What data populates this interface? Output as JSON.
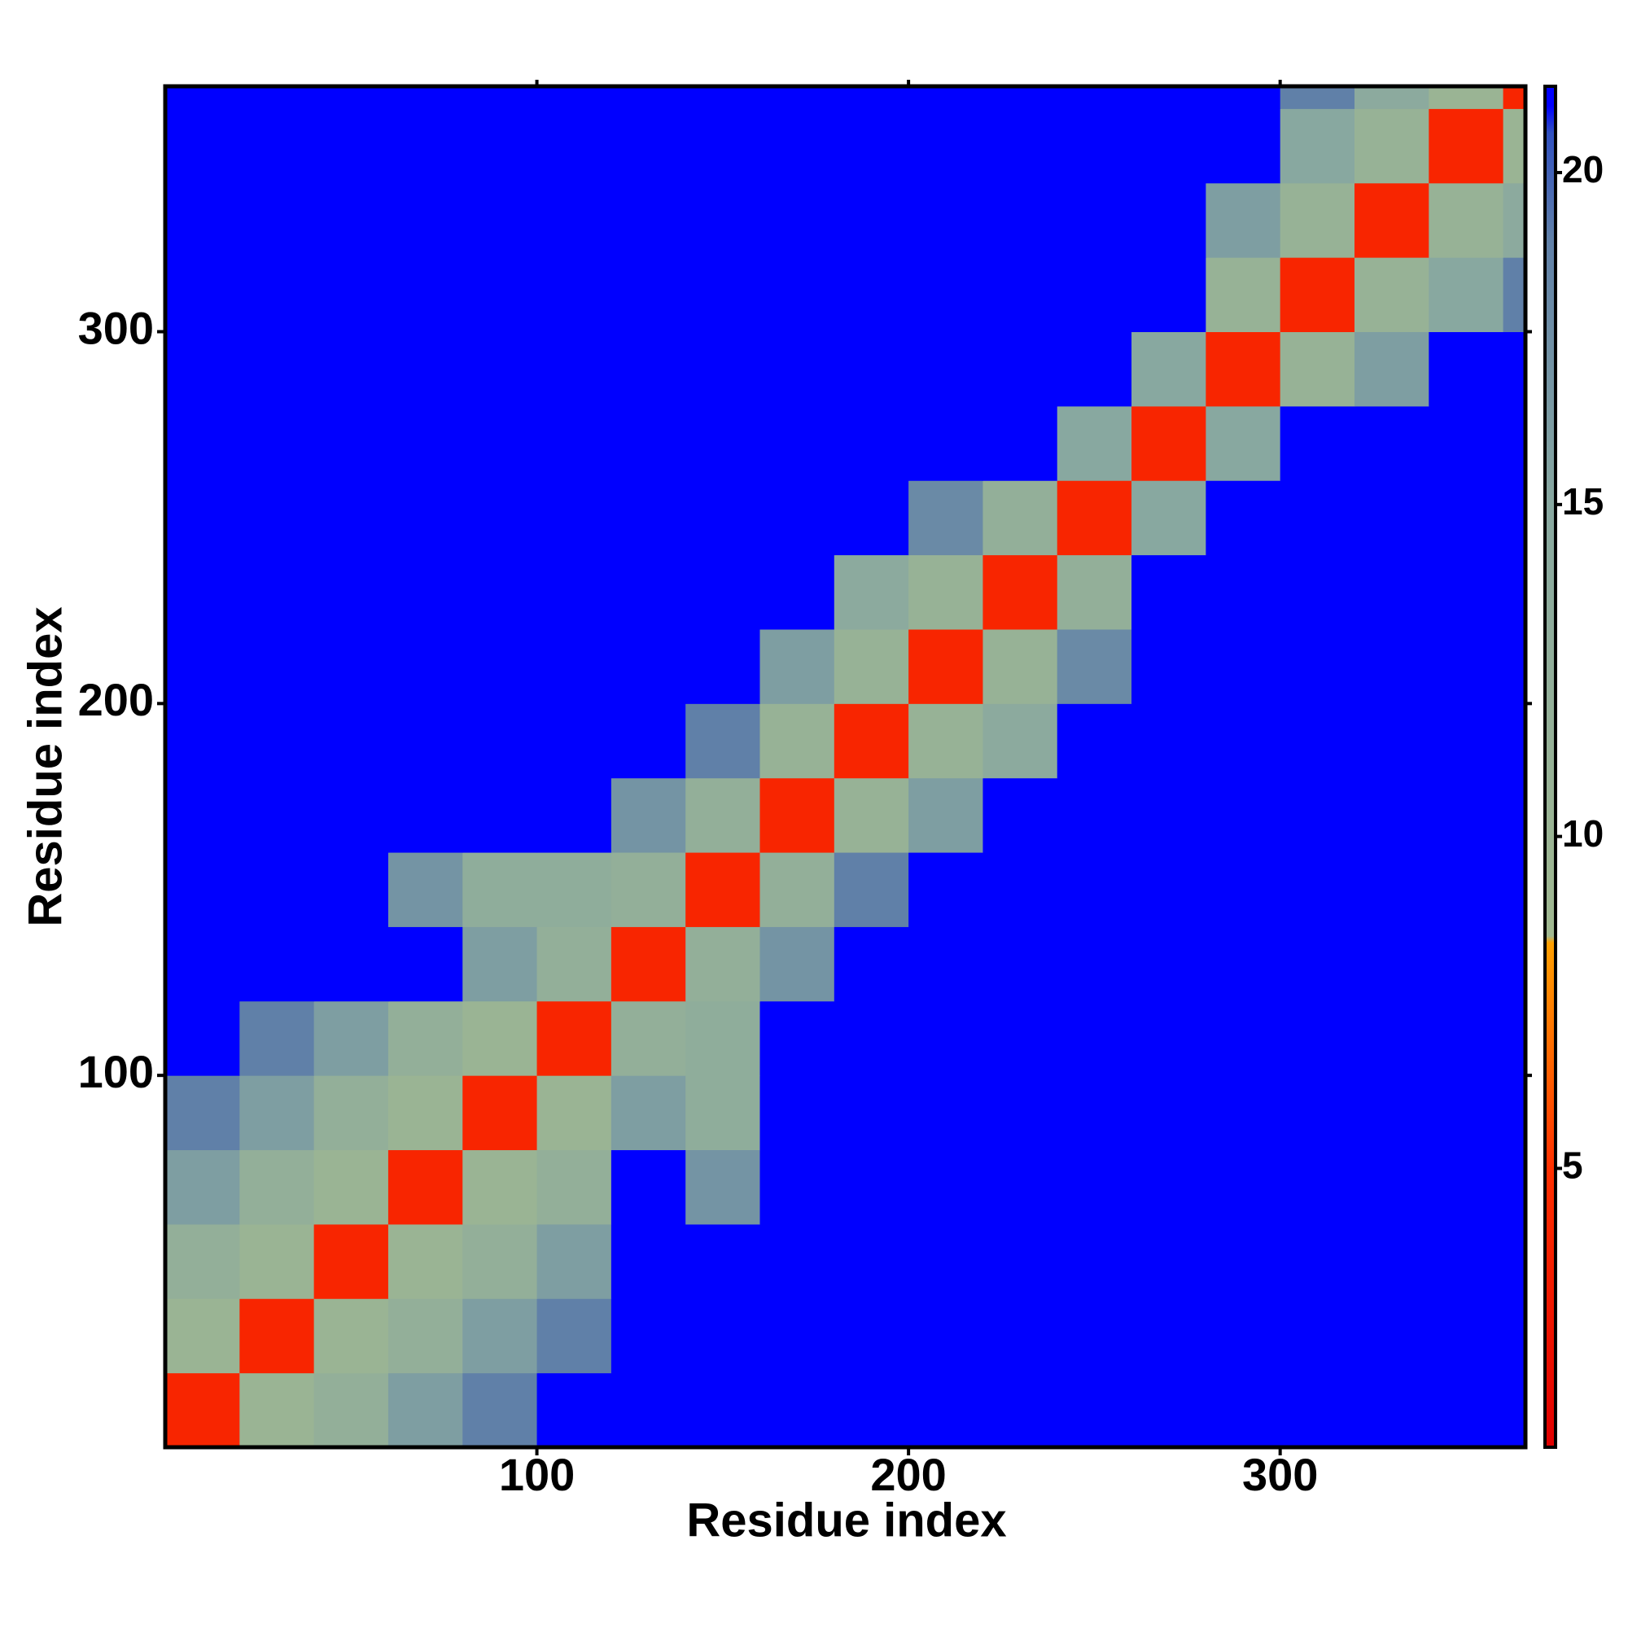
{
  "chart_data": {
    "type": "heatmap",
    "xlabel": "Residue index",
    "ylabel": "Residue index",
    "xlim": [
      0,
      366
    ],
    "ylim": [
      0,
      366
    ],
    "xticks": [
      100,
      200,
      300
    ],
    "yticks": [
      100,
      200,
      300
    ],
    "xbins": [
      0,
      20,
      40,
      60,
      80,
      100,
      120,
      140,
      160,
      180,
      200,
      220,
      240,
      260,
      280,
      300,
      320,
      340,
      360,
      366
    ],
    "ybins": [
      0,
      20,
      40,
      60,
      80,
      100,
      120,
      140,
      160,
      180,
      200,
      220,
      240,
      260,
      280,
      300,
      320,
      340,
      360,
      366
    ],
    "values": [
      [
        4,
        10,
        12,
        16,
        19,
        21,
        21,
        21,
        21,
        21,
        21,
        21,
        21,
        21,
        21,
        21,
        21,
        21,
        21
      ],
      [
        10,
        4,
        10,
        12,
        16,
        19,
        21,
        21,
        21,
        21,
        21,
        21,
        21,
        21,
        21,
        21,
        21,
        21,
        21
      ],
      [
        12,
        10,
        4,
        10,
        12,
        16,
        21,
        21,
        21,
        21,
        21,
        21,
        21,
        21,
        21,
        21,
        21,
        21,
        21
      ],
      [
        16,
        12,
        10,
        4,
        10,
        12,
        21,
        17,
        21,
        21,
        21,
        21,
        21,
        21,
        21,
        21,
        21,
        21,
        21
      ],
      [
        19,
        16,
        12,
        10,
        4,
        10,
        16,
        13,
        21,
        21,
        21,
        21,
        21,
        21,
        21,
        21,
        21,
        21,
        21
      ],
      [
        21,
        19,
        16,
        12,
        10,
        4,
        12,
        13,
        21,
        21,
        21,
        21,
        21,
        21,
        21,
        21,
        21,
        21,
        21
      ],
      [
        21,
        21,
        21,
        21,
        16,
        12,
        4,
        12,
        17,
        21,
        21,
        21,
        21,
        21,
        21,
        21,
        21,
        21,
        21
      ],
      [
        21,
        21,
        21,
        17,
        13,
        13,
        12,
        4,
        12,
        19,
        21,
        21,
        21,
        21,
        21,
        21,
        21,
        21,
        21
      ],
      [
        21,
        21,
        21,
        21,
        21,
        21,
        17,
        12,
        4,
        11,
        16,
        21,
        21,
        21,
        21,
        21,
        21,
        21,
        21
      ],
      [
        21,
        21,
        21,
        21,
        21,
        21,
        21,
        19,
        11,
        4,
        11,
        14,
        21,
        21,
        21,
        21,
        21,
        21,
        21
      ],
      [
        21,
        21,
        21,
        21,
        21,
        21,
        21,
        21,
        16,
        11,
        4,
        11,
        18,
        21,
        21,
        21,
        21,
        21,
        21
      ],
      [
        21,
        21,
        21,
        21,
        21,
        21,
        21,
        21,
        21,
        14,
        11,
        4,
        12,
        21,
        21,
        21,
        21,
        21,
        21
      ],
      [
        21,
        21,
        21,
        21,
        21,
        21,
        21,
        21,
        21,
        21,
        18,
        12,
        4,
        15,
        21,
        21,
        21,
        21,
        21
      ],
      [
        21,
        21,
        21,
        21,
        21,
        21,
        21,
        21,
        21,
        21,
        21,
        21,
        15,
        4,
        15,
        21,
        21,
        21,
        21
      ],
      [
        21,
        21,
        21,
        21,
        21,
        21,
        21,
        21,
        21,
        21,
        21,
        21,
        21,
        15,
        4,
        11,
        16,
        21,
        21
      ],
      [
        21,
        21,
        21,
        21,
        21,
        21,
        21,
        21,
        21,
        21,
        21,
        21,
        21,
        21,
        11,
        4,
        11,
        15,
        19
      ],
      [
        21,
        21,
        21,
        21,
        21,
        21,
        21,
        21,
        21,
        21,
        21,
        21,
        21,
        21,
        16,
        11,
        4,
        11,
        14
      ],
      [
        21,
        21,
        21,
        21,
        21,
        21,
        21,
        21,
        21,
        21,
        21,
        21,
        21,
        21,
        21,
        15,
        11,
        4,
        10
      ],
      [
        21,
        21,
        21,
        21,
        21,
        21,
        21,
        21,
        21,
        21,
        21,
        21,
        21,
        21,
        21,
        19,
        14,
        10,
        4
      ]
    ],
    "colorbar": {
      "lim": [
        0.8,
        21.3
      ],
      "ticks": [
        5,
        10,
        15,
        20
      ],
      "stops": [
        [
          0.8,
          "#e00000"
        ],
        [
          5,
          "#ff3000"
        ],
        [
          8.4,
          "#ffa000"
        ],
        [
          8.5,
          "#a0b890"
        ],
        [
          15,
          "#88a8a0"
        ],
        [
          19,
          "#6080a8"
        ],
        [
          20.6,
          "#3050c0"
        ],
        [
          21,
          "#0000ff"
        ]
      ]
    }
  }
}
